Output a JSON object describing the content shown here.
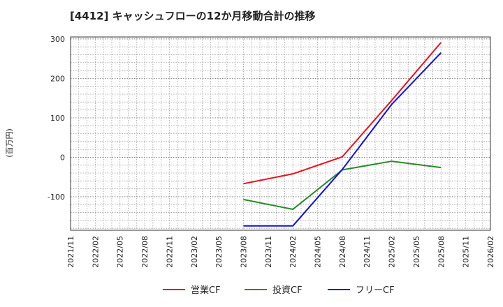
{
  "chart_data": {
    "type": "line",
    "title": "[4412]  キャッシュフローの12か月移動合計の推移",
    "ylabel": "(百万円)",
    "xlabel": "",
    "ylim": [
      -185,
      305
    ],
    "yticks": [
      300,
      200,
      100,
      0,
      -100
    ],
    "ytick_labels": [
      "300",
      "200",
      "100",
      "0",
      "-100"
    ],
    "x_tick_labels": [
      "2021/11",
      "2022/02",
      "2022/05",
      "2022/08",
      "2022/11",
      "2023/02",
      "2023/05",
      "2023/08",
      "2023/11",
      "2024/02",
      "2024/05",
      "2024/08",
      "2024/11",
      "2025/02",
      "2025/05",
      "2025/08",
      "2025/11",
      "2026/02"
    ],
    "grid": true,
    "legend_position": "bottom-center",
    "series": [
      {
        "name": "営業CF",
        "color": "#e8101a",
        "points": [
          [
            "2023/08",
            -67
          ],
          [
            "2024/02",
            -42
          ],
          [
            "2024/08",
            1
          ],
          [
            "2025/02",
            144
          ],
          [
            "2025/08",
            291
          ]
        ]
      },
      {
        "name": "投資CF",
        "color": "#2a8a2a",
        "points": [
          [
            "2023/08",
            -107
          ],
          [
            "2024/02",
            -132
          ],
          [
            "2024/08",
            -32
          ],
          [
            "2025/02",
            -10
          ],
          [
            "2025/08",
            -26
          ]
        ]
      },
      {
        "name": "フリーCF",
        "color": "#1010e0",
        "points": [
          [
            "2023/08",
            -174
          ],
          [
            "2024/02",
            -174
          ],
          [
            "2024/08",
            -31
          ],
          [
            "2025/02",
            134
          ],
          [
            "2025/08",
            265
          ]
        ]
      }
    ]
  }
}
